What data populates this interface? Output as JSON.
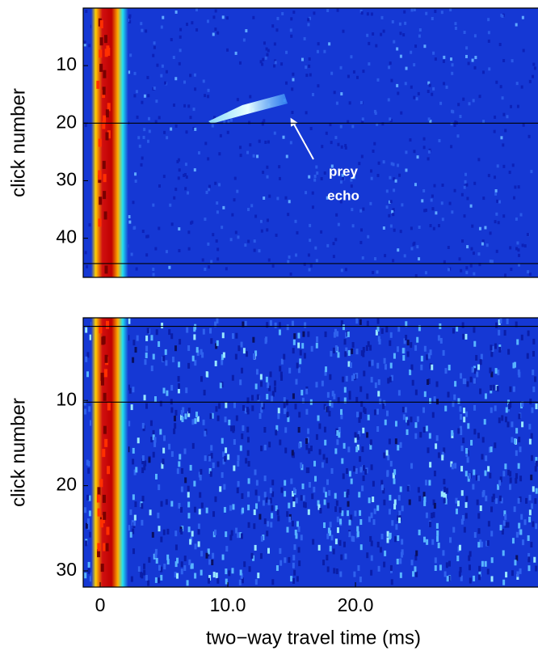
{
  "chart_data": [
    {
      "type": "heatmap",
      "ylabel": "click number",
      "xlim": [
        -1.33,
        34.3
      ],
      "ylim": [
        0,
        46.8
      ],
      "yticks": [
        10,
        20,
        30,
        40
      ],
      "hlines": [
        20,
        44.4
      ],
      "annotation": [
        "prey",
        "echo"
      ]
    },
    {
      "type": "heatmap",
      "ylabel": "click number",
      "xlabel": "two−way travel time (ms)",
      "xlim": [
        -1.33,
        34.3
      ],
      "ylim": [
        0.3,
        31.9
      ],
      "yticks": [
        10,
        20,
        30
      ],
      "xticks": [
        0,
        {
          "value": 10,
          "label": "10.0"
        },
        {
          "value": 20,
          "label": "20.0"
        }
      ],
      "hlines": [
        1.3,
        10.2
      ]
    }
  ]
}
